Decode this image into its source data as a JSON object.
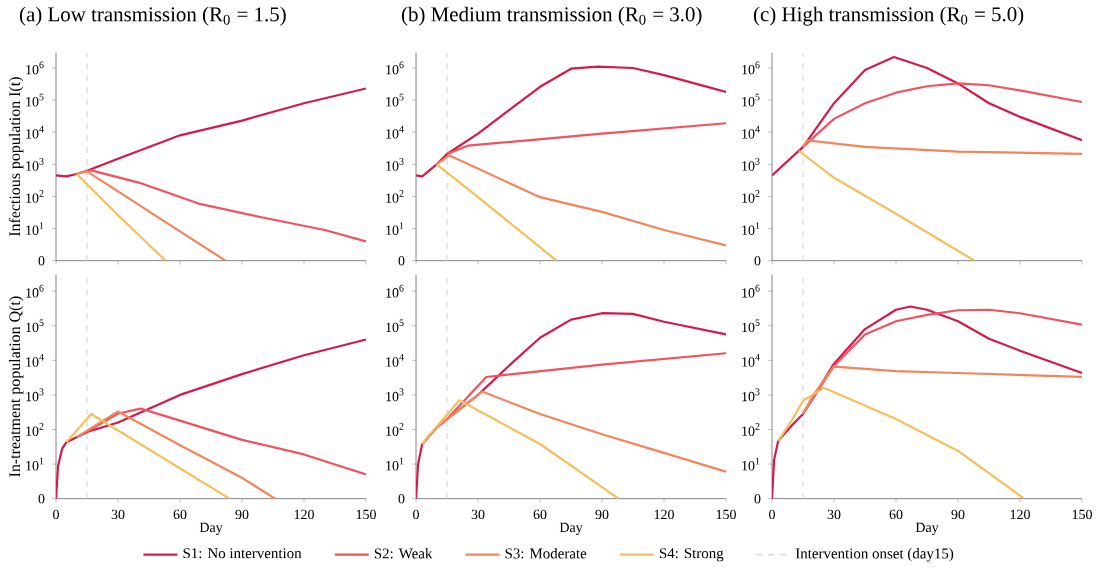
{
  "chart_data": [
    {
      "type": "line",
      "title": "(a) Low transmission (R$_{0}$ = 1.5)",
      "ylabel": "Infectious population I(t)",
      "xlim": [
        0,
        150
      ],
      "xticks": [
        0,
        30,
        60,
        90,
        120,
        150
      ],
      "ylim": [
        0,
        3000000
      ],
      "yticks": [
        0,
        {
          "value": 10,
          "label": "10$^{1}$"
        },
        {
          "value": 100,
          "label": "10$^{2}$"
        },
        {
          "value": 1000,
          "label": "10$^{3}$"
        },
        {
          "value": 10000,
          "label": "10$^{4}$"
        },
        {
          "value": 100000,
          "label": "10$^{5}$"
        },
        {
          "value": 1000000,
          "label": "10$^{6}$"
        }
      ],
      "log": true,
      "tick_labels": "y",
      "line_style": "solid",
      "ref_lines": [
        {
          "axis": "x",
          "value": 15,
          "color": "#d9d9d9",
          "line_style": "dashed"
        }
      ],
      "series": [
        {
          "color": "#d6194b",
          "x": [
            0,
            5,
            10,
            15,
            30,
            60,
            90,
            120,
            150
          ],
          "values": [
            450,
            420,
            500,
            630,
            1500,
            8000,
            23000,
            80000,
            230000
          ]
        },
        {
          "color": "#f2525e",
          "x": [
            15,
            17,
            40,
            69,
            100,
            130,
            150
          ],
          "values": [
            630,
            650,
            270,
            60,
            22,
            9,
            4
          ]
        },
        {
          "color": "#f4845a",
          "x": [
            10,
            12,
            15,
            50,
            82
          ],
          "values": [
            500,
            560,
            600,
            21,
            1
          ]
        },
        {
          "color": "#f7be5e",
          "x": [
            10,
            30,
            53
          ],
          "values": [
            500,
            26,
            1
          ]
        }
      ]
    },
    {
      "type": "line",
      "title": "(b) Medium transmission (R$_{0}$ = 3.0)",
      "xlim": [
        0,
        150
      ],
      "xticks": [
        0,
        30,
        60,
        90,
        120,
        150
      ],
      "ylim": [
        0,
        3000000
      ],
      "yticks": [
        0,
        {
          "value": 10,
          "label": "10$^{1}$"
        },
        {
          "value": 100,
          "label": "10$^{2}$"
        },
        {
          "value": 1000,
          "label": "10$^{3}$"
        },
        {
          "value": 10000,
          "label": "10$^{4}$"
        },
        {
          "value": 100000,
          "label": "10$^{5}$"
        },
        {
          "value": 1000000,
          "label": "10$^{6}$"
        }
      ],
      "log": true,
      "tick_labels": "y",
      "line_style": "solid",
      "ref_lines": [
        {
          "axis": "x",
          "value": 15,
          "color": "#d9d9d9",
          "line_style": "dashed"
        }
      ],
      "series": [
        {
          "color": "#d6194b",
          "x": [
            0,
            3,
            10,
            15,
            30,
            45,
            60,
            75,
            88,
            105,
            120,
            150
          ],
          "values": [
            450,
            420,
            1000,
            2100,
            9000,
            49000,
            260000,
            950000,
            1100000,
            1000000,
            600000,
            180000
          ]
        },
        {
          "color": "#f2525e",
          "x": [
            15,
            25,
            90,
            150
          ],
          "values": [
            2100,
            3800,
            9000,
            19000
          ]
        },
        {
          "color": "#f4845a",
          "x": [
            10,
            16,
            60,
            90,
            120,
            150
          ],
          "values": [
            1000,
            1900,
            95,
            33,
            9,
            3
          ]
        },
        {
          "color": "#f7be5e",
          "x": [
            10,
            30,
            68
          ],
          "values": [
            1000,
            95,
            1
          ]
        }
      ]
    },
    {
      "type": "line",
      "title": "(c) High transmission (R$_{0}$ = 5.0)",
      "xlim": [
        0,
        150
      ],
      "xticks": [
        0,
        30,
        60,
        90,
        120,
        150
      ],
      "ylim": [
        0,
        3000000
      ],
      "yticks": [
        0,
        {
          "value": 10,
          "label": "10$^{1}$"
        },
        {
          "value": 100,
          "label": "10$^{2}$"
        },
        {
          "value": 1000,
          "label": "10$^{3}$"
        },
        {
          "value": 10000,
          "label": "10$^{4}$"
        },
        {
          "value": 100000,
          "label": "10$^{5}$"
        },
        {
          "value": 1000000,
          "label": "10$^{6}$"
        }
      ],
      "log": true,
      "tick_labels": "y",
      "line_style": "solid",
      "ref_lines": [
        {
          "axis": "x",
          "value": 15,
          "color": "#d9d9d9",
          "line_style": "dashed"
        }
      ],
      "series": [
        {
          "color": "#d6194b",
          "x": [
            0,
            15,
            30,
            45,
            59,
            75,
            90,
            105,
            120,
            150
          ],
          "values": [
            450,
            3500,
            80000,
            870000,
            2200000,
            1000000,
            330000,
            80000,
            30000,
            5600
          ]
        },
        {
          "color": "#f2525e",
          "x": [
            15,
            30,
            45,
            60,
            75,
            90,
            105,
            120,
            150
          ],
          "values": [
            3500,
            26000,
            80000,
            170000,
            270000,
            330000,
            290000,
            200000,
            87000
          ]
        },
        {
          "color": "#f4845a",
          "x": [
            15,
            17,
            45,
            90,
            150
          ],
          "values": [
            3500,
            5600,
            3500,
            2500,
            2100
          ]
        },
        {
          "color": "#f7be5e",
          "x": [
            13,
            30,
            60,
            98
          ],
          "values": [
            2600,
            380,
            29,
            1
          ]
        }
      ]
    },
    {
      "type": "line",
      "xlabel": "Day",
      "ylabel": "In-treatment population Q(t)",
      "xlim": [
        0,
        150
      ],
      "xticks": [
        0,
        30,
        60,
        90,
        120,
        150
      ],
      "ylim": [
        0,
        3000000
      ],
      "yticks": [
        0,
        {
          "value": 10,
          "label": "10$^{1}$"
        },
        {
          "value": 100,
          "label": "10$^{2}$"
        },
        {
          "value": 1000,
          "label": "10$^{3}$"
        },
        {
          "value": 10000,
          "label": "10$^{4}$"
        },
        {
          "value": 100000,
          "label": "10$^{5}$"
        },
        {
          "value": 1000000,
          "label": "10$^{6}$"
        }
      ],
      "log": true,
      "line_style": "solid",
      "ref_lines": [
        {
          "axis": "x",
          "value": 15,
          "color": "#d9d9d9",
          "line_style": "dashed"
        }
      ],
      "series": [
        {
          "color": "#d6194b",
          "x": [
            0,
            1,
            3,
            5,
            10,
            15,
            30,
            45,
            60,
            90,
            120,
            150
          ],
          "values": [
            1,
            9,
            28,
            43,
            60,
            85,
            160,
            400,
            1000,
            4000,
            14000,
            40000
          ]
        },
        {
          "color": "#f2525e",
          "x": [
            15,
            30,
            41,
            60,
            90,
            120,
            150
          ],
          "values": [
            85,
            290,
            400,
            180,
            50,
            19,
            5
          ]
        },
        {
          "color": "#f4845a",
          "x": [
            10,
            30,
            60,
            90,
            106
          ],
          "values": [
            60,
            330,
            35,
            4,
            1
          ]
        },
        {
          "color": "#f7be5e",
          "x": [
            5,
            17,
            84
          ],
          "values": [
            43,
            280,
            1
          ]
        }
      ]
    },
    {
      "type": "line",
      "xlabel": "Day",
      "xlim": [
        0,
        150
      ],
      "xticks": [
        0,
        30,
        60,
        90,
        120,
        150
      ],
      "ylim": [
        0,
        3000000
      ],
      "yticks": [
        0,
        {
          "value": 10,
          "label": "10$^{1}$"
        },
        {
          "value": 100,
          "label": "10$^{2}$"
        },
        {
          "value": 1000,
          "label": "10$^{3}$"
        },
        {
          "value": 10000,
          "label": "10$^{4}$"
        },
        {
          "value": 100000,
          "label": "10$^{5}$"
        },
        {
          "value": 1000000,
          "label": "10$^{6}$"
        }
      ],
      "log": true,
      "line_style": "solid",
      "ref_lines": [
        {
          "axis": "x",
          "value": 15,
          "color": "#d9d9d9",
          "line_style": "dashed"
        }
      ],
      "series": [
        {
          "color": "#d6194b",
          "x": [
            0,
            1,
            3,
            10,
            15,
            30,
            45,
            60,
            75,
            90,
            105,
            120,
            150
          ],
          "values": [
            1,
            10,
            38,
            115,
            200,
            1000,
            7000,
            45000,
            150000,
            230000,
            220000,
            130000,
            56000
          ]
        },
        {
          "color": "#f2525e",
          "x": [
            15,
            34,
            90,
            150
          ],
          "values": [
            200,
            3300,
            7500,
            16000
          ]
        },
        {
          "color": "#f4845a",
          "x": [
            10,
            32,
            60,
            90,
            120,
            150
          ],
          "values": [
            115,
            1250,
            280,
            73,
            21,
            6
          ]
        },
        {
          "color": "#f7be5e",
          "x": [
            3,
            5,
            21,
            60,
            98
          ],
          "values": [
            38,
            55,
            700,
            38,
            1
          ]
        }
      ]
    },
    {
      "type": "line",
      "xlabel": "Day",
      "xlim": [
        0,
        150
      ],
      "xticks": [
        0,
        30,
        60,
        90,
        120,
        150
      ],
      "ylim": [
        0,
        3000000
      ],
      "yticks": [
        0,
        {
          "value": 10,
          "label": "10$^{1}$"
        },
        {
          "value": 100,
          "label": "10$^{2}$"
        },
        {
          "value": 1000,
          "label": "10$^{3}$"
        },
        {
          "value": 10000,
          "label": "10$^{4}$"
        },
        {
          "value": 100000,
          "label": "10$^{5}$"
        },
        {
          "value": 1000000,
          "label": "10$^{6}$"
        }
      ],
      "log": true,
      "line_style": "solid",
      "legend": "bottom",
      "ref_lines": [
        {
          "axis": "x",
          "value": 15,
          "color": "#d9d9d9",
          "line_style": "dashed",
          "label": "Intervention onset (day15)"
        }
      ],
      "series": [
        {
          "name": "S1: No intervention",
          "color": "#d6194b",
          "x": [
            0,
            1,
            3,
            10,
            15,
            30,
            45,
            60,
            67,
            75,
            90,
            105,
            120,
            150
          ],
          "values": [
            1,
            13,
            47,
            140,
            280,
            8000,
            80000,
            290000,
            360000,
            290000,
            135000,
            42000,
            19000,
            4300
          ]
        },
        {
          "name": "S2: Weak",
          "color": "#f2525e",
          "x": [
            15,
            30,
            45,
            60,
            75,
            90,
            105,
            120,
            150
          ],
          "values": [
            280,
            7000,
            56000,
            135000,
            205000,
            280000,
            290000,
            230000,
            108000
          ]
        },
        {
          "name": "S3: Moderate",
          "color": "#f4845a",
          "x": [
            15,
            20,
            30,
            60,
            90,
            150
          ],
          "values": [
            280,
            1000,
            6600,
            4900,
            4300,
            3300
          ]
        },
        {
          "name": "S4: Strong",
          "color": "#f7be5e",
          "x": [
            3,
            10,
            15,
            25,
            60,
            90,
            122
          ],
          "values": [
            47,
            200,
            680,
            1600,
            200,
            24,
            1
          ]
        }
      ]
    }
  ]
}
